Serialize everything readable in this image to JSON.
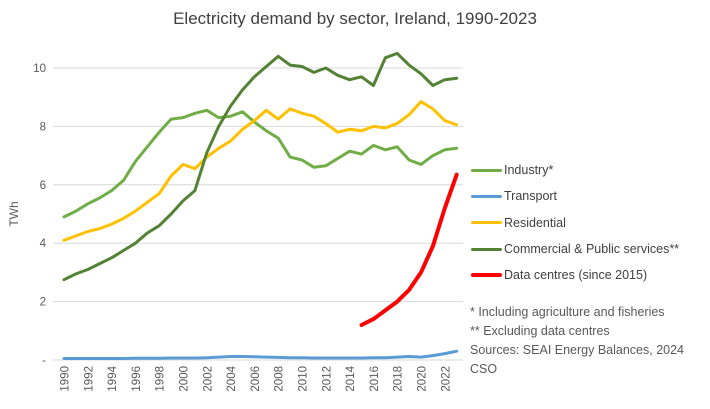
{
  "title": "Electricity demand by sector, Ireland, 1990-2023",
  "footnotes": [
    "* Including agriculture and fisheries",
    "** Excluding data centres",
    "Sources: SEAI Energy Balances, 2024",
    "CSO"
  ],
  "colors": {
    "industry": "#70AD47",
    "transport": "#5B9BD5",
    "residential": "#FFC000",
    "commercial": "#548235",
    "data_centres": "#FF0000",
    "gridline": "#D9D9D9",
    "axis_text": "#595959",
    "title_text": "#404040"
  },
  "chart_data": {
    "type": "line",
    "title": "Electricity demand by sector, Ireland, 1990-2023",
    "xlabel": "",
    "ylabel": "TWh",
    "ylim": [
      0,
      10.7
    ],
    "grid": true,
    "legend_position": "right",
    "ytick_values": [
      10,
      8,
      6,
      4,
      2,
      0
    ],
    "ytick_labels": [
      "10",
      "8",
      "6",
      "4",
      "2",
      "-"
    ],
    "xtick_labels": [
      "1990",
      "1992",
      "1994",
      "1996",
      "1998",
      "2000",
      "2002",
      "2004",
      "2006",
      "2008",
      "2010",
      "2012",
      "2014",
      "2016",
      "2018",
      "2020",
      "2022"
    ],
    "x": [
      1990,
      1991,
      1992,
      1993,
      1994,
      1995,
      1996,
      1997,
      1998,
      1999,
      2000,
      2001,
      2002,
      2003,
      2004,
      2005,
      2006,
      2007,
      2008,
      2009,
      2010,
      2011,
      2012,
      2013,
      2014,
      2015,
      2016,
      2017,
      2018,
      2019,
      2020,
      2021,
      2022,
      2023
    ],
    "series": [
      {
        "name": "Industry*",
        "color": "#70AD47",
        "values": [
          4.9,
          5.1,
          5.35,
          5.55,
          5.8,
          6.15,
          6.8,
          7.3,
          7.8,
          8.25,
          8.3,
          8.45,
          8.55,
          8.3,
          8.35,
          8.5,
          8.15,
          7.85,
          7.6,
          6.95,
          6.85,
          6.6,
          6.65,
          6.9,
          7.15,
          7.05,
          7.35,
          7.2,
          7.3,
          6.85,
          6.7,
          7.0,
          7.2,
          7.25
        ]
      },
      {
        "name": "Transport",
        "color": "#5B9BD5",
        "values": [
          0.05,
          0.05,
          0.05,
          0.05,
          0.05,
          0.05,
          0.06,
          0.06,
          0.06,
          0.07,
          0.07,
          0.07,
          0.08,
          0.1,
          0.12,
          0.12,
          0.11,
          0.1,
          0.09,
          0.08,
          0.08,
          0.07,
          0.07,
          0.07,
          0.07,
          0.07,
          0.08,
          0.08,
          0.1,
          0.12,
          0.1,
          0.15,
          0.22,
          0.3
        ]
      },
      {
        "name": "Residential",
        "color": "#FFC000",
        "values": [
          4.1,
          4.25,
          4.4,
          4.5,
          4.65,
          4.85,
          5.1,
          5.4,
          5.7,
          6.3,
          6.7,
          6.55,
          6.95,
          7.25,
          7.5,
          7.9,
          8.2,
          8.55,
          8.25,
          8.6,
          8.45,
          8.35,
          8.1,
          7.8,
          7.9,
          7.85,
          8.0,
          7.95,
          8.1,
          8.4,
          8.85,
          8.6,
          8.2,
          8.05
        ]
      },
      {
        "name": "Commercial & Public services**",
        "color": "#548235",
        "values": [
          2.75,
          2.95,
          3.1,
          3.3,
          3.5,
          3.75,
          4.0,
          4.35,
          4.6,
          5.0,
          5.45,
          5.8,
          7.1,
          8.0,
          8.7,
          9.25,
          9.7,
          10.05,
          10.4,
          10.1,
          10.05,
          9.85,
          10.0,
          9.75,
          9.6,
          9.7,
          9.4,
          10.35,
          10.5,
          10.1,
          9.8,
          9.4,
          9.6,
          9.65
        ]
      },
      {
        "name": "Data centres (since 2015)",
        "color": "#FF0000",
        "values": [
          null,
          null,
          null,
          null,
          null,
          null,
          null,
          null,
          null,
          null,
          null,
          null,
          null,
          null,
          null,
          null,
          null,
          null,
          null,
          null,
          null,
          null,
          null,
          null,
          null,
          1.2,
          1.4,
          1.7,
          2.0,
          2.4,
          3.0,
          3.9,
          5.2,
          6.35
        ]
      }
    ]
  }
}
